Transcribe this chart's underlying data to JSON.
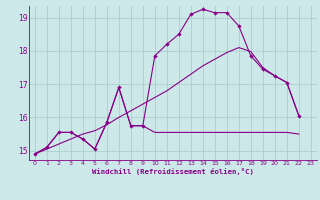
{
  "xlabel": "Windchill (Refroidissement éolien,°C)",
  "bg_color": "#cce8e8",
  "grid_color": "#aacece",
  "line_color": "#880088",
  "x_ticks": [
    0,
    1,
    2,
    3,
    4,
    5,
    6,
    7,
    8,
    9,
    10,
    11,
    12,
    13,
    14,
    15,
    16,
    17,
    18,
    19,
    20,
    21,
    22,
    23
  ],
  "ylim": [
    14.72,
    19.35
  ],
  "xlim": [
    -0.5,
    23.5
  ],
  "yticks": [
    15,
    16,
    17,
    18,
    19
  ],
  "series1_x": [
    0,
    1,
    2,
    3,
    4,
    5,
    6,
    7,
    8,
    9,
    10,
    11,
    12,
    13,
    14,
    15,
    16,
    17,
    18,
    19,
    20,
    21,
    22
  ],
  "series1_y": [
    14.9,
    15.1,
    15.55,
    15.55,
    15.35,
    15.05,
    15.85,
    16.9,
    15.75,
    15.75,
    17.85,
    18.2,
    18.5,
    19.1,
    19.25,
    19.15,
    19.15,
    18.75,
    17.85,
    17.45,
    17.25,
    17.05,
    16.05
  ],
  "series2_x": [
    0,
    1,
    2,
    3,
    4,
    5,
    6,
    7,
    8,
    9,
    10,
    11,
    12,
    13,
    14,
    15,
    16,
    17,
    18,
    19,
    20,
    21,
    22
  ],
  "series2_y": [
    14.9,
    15.1,
    15.55,
    15.55,
    15.35,
    15.05,
    15.85,
    16.9,
    15.75,
    15.75,
    15.55,
    15.55,
    15.55,
    15.55,
    15.55,
    15.55,
    15.55,
    15.55,
    15.55,
    15.55,
    15.55,
    15.55,
    15.5
  ],
  "series3_x": [
    0,
    1,
    2,
    3,
    4,
    5,
    6,
    7,
    8,
    9,
    10,
    11,
    12,
    13,
    14,
    15,
    16,
    17,
    18,
    19,
    20,
    21,
    22
  ],
  "series3_y": [
    14.9,
    15.05,
    15.2,
    15.35,
    15.5,
    15.6,
    15.78,
    16.0,
    16.2,
    16.4,
    16.6,
    16.8,
    17.05,
    17.3,
    17.55,
    17.75,
    17.95,
    18.1,
    17.98,
    17.5,
    17.25,
    17.05,
    16.05
  ]
}
